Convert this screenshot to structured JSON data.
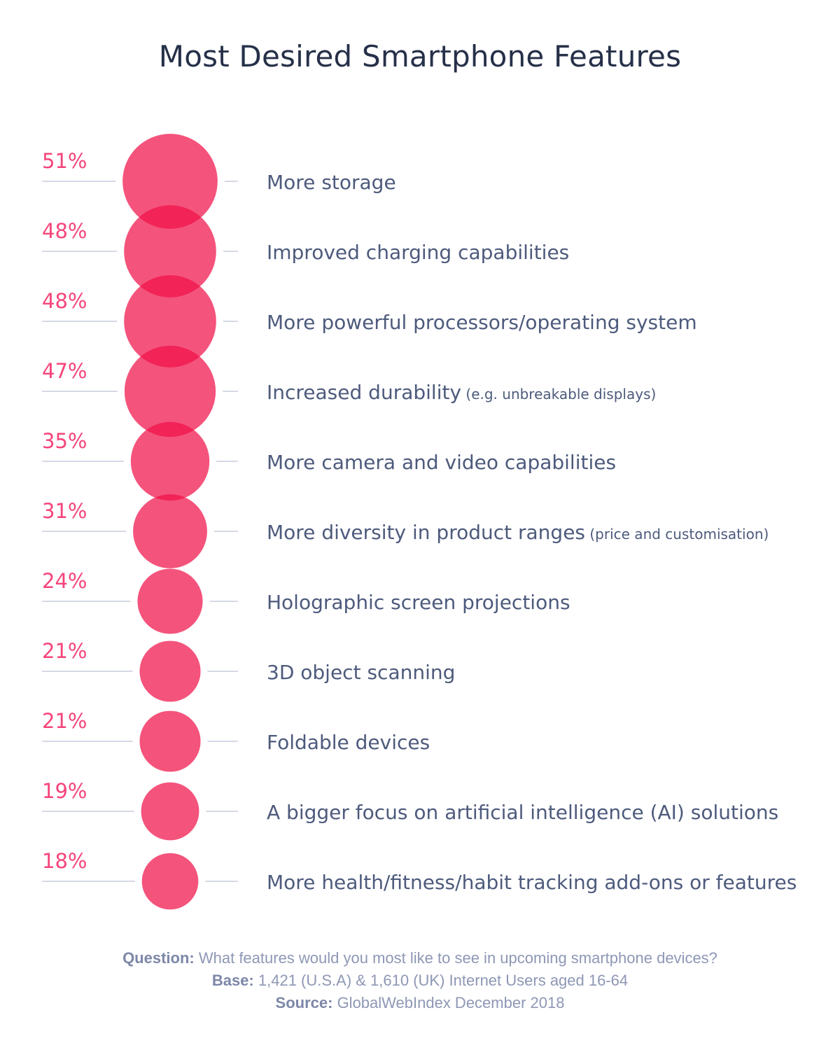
{
  "chart_data": {
    "type": "bubble",
    "title": "Most Desired Smartphone Features",
    "unit": "%",
    "categories": [
      {
        "label": "More storage",
        "note": ""
      },
      {
        "label": "Improved charging capabilities",
        "note": ""
      },
      {
        "label": "More powerful processors/operating system",
        "note": ""
      },
      {
        "label": "Increased durability",
        "note": "(e.g. unbreakable displays)"
      },
      {
        "label": "More camera and video capabilities",
        "note": ""
      },
      {
        "label": "More diversity in product ranges",
        "note": "(price and customisation)"
      },
      {
        "label": "Holographic screen projections",
        "note": ""
      },
      {
        "label": "3D object scanning",
        "note": ""
      },
      {
        "label": "Foldable devices",
        "note": ""
      },
      {
        "label": "A bigger focus on artificial intelligence (AI) solutions",
        "note": ""
      },
      {
        "label": "More health/fitness/habit tracking add-ons or features",
        "note": ""
      }
    ],
    "values": [
      51,
      48,
      48,
      47,
      35,
      31,
      24,
      21,
      21,
      19,
      18
    ],
    "value_labels": [
      "51%",
      "48%",
      "48%",
      "47%",
      "35%",
      "31%",
      "24%",
      "21%",
      "21%",
      "19%",
      "18%"
    ],
    "colors": {
      "bubble": "#f0104a",
      "value_text": "#f5457a",
      "label_text": "#4d5a7c",
      "guide_line": "#d5d9e6"
    }
  },
  "footer": {
    "question_label": "Question:",
    "question": "What features would you most like to see in upcoming smartphone devices?",
    "base_label": "Base:",
    "base": "1,421 (U.S.A) & 1,610 (UK) Internet Users aged 16-64",
    "source_label": "Source:",
    "source": "GlobalWebIndex December 2018"
  }
}
